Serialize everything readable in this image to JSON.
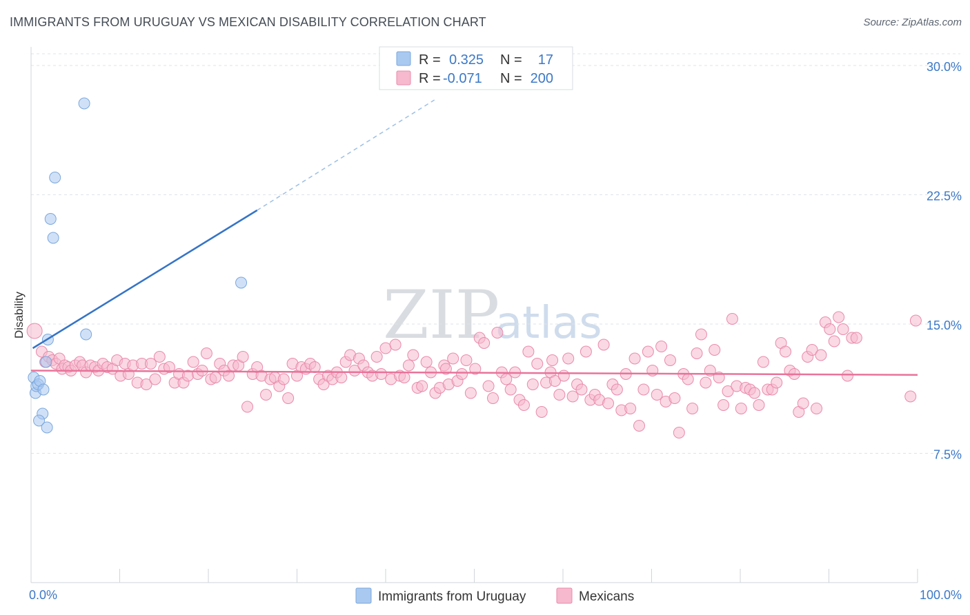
{
  "title": "IMMIGRANTS FROM URUGUAY VS MEXICAN DISABILITY CORRELATION CHART",
  "source": "Source: ZipAtlas.com",
  "watermark": {
    "zip": "ZIP",
    "atlas": "atlas"
  },
  "legend_top": [
    {
      "r_label": "R =",
      "r_value": "0.325",
      "n_label": "N =",
      "n_value": "17",
      "color": "#a9c9f0",
      "stroke": "#7aa7dd"
    },
    {
      "r_label": "R =",
      "r_value": "-0.071",
      "n_label": "N =",
      "n_value": "200",
      "color": "#f6b9cd",
      "stroke": "#e98aab"
    }
  ],
  "legend_bottom": [
    {
      "label": "Immigrants from Uruguay",
      "color": "#a9c9f0",
      "stroke": "#7aa7dd"
    },
    {
      "label": "Mexicans",
      "color": "#f6b9cd",
      "stroke": "#e98aab"
    }
  ],
  "chart_data": {
    "type": "scatter",
    "title": "IMMIGRANTS FROM URUGUAY VS MEXICAN DISABILITY CORRELATION CHART",
    "xlabel": "",
    "ylabel": "Disability",
    "xlim": [
      0,
      100
    ],
    "ylim": [
      0,
      32
    ],
    "x_tick_labels": [
      "0.0%",
      "100.0%"
    ],
    "y_ticks": [
      {
        "value": 7.5,
        "label": "7.5%"
      },
      {
        "value": 15.0,
        "label": "15.0%"
      },
      {
        "value": 22.5,
        "label": "22.5%"
      },
      {
        "value": 30.0,
        "label": "30.0%"
      }
    ],
    "grid": "horizontal-dashed",
    "legend_position": "top-center",
    "series": [
      {
        "name": "Immigrants from Uruguay",
        "color": "#a9c9f0",
        "stroke": "#7aa7dd",
        "trend_color": "#3574c6",
        "trend": {
          "x0": 0.2,
          "y0": 13.6,
          "x1": 25.5,
          "y1": 21.6,
          "dash_to_x": 45.5,
          "dash_to_y": 28.0
        },
        "points": [
          [
            0.3,
            11.9
          ],
          [
            0.5,
            11.0
          ],
          [
            0.6,
            11.4
          ],
          [
            0.8,
            11.5
          ],
          [
            1.0,
            11.7
          ],
          [
            1.4,
            11.2
          ],
          [
            1.3,
            9.8
          ],
          [
            0.9,
            9.4
          ],
          [
            1.8,
            9.0
          ],
          [
            1.7,
            12.8
          ],
          [
            1.9,
            14.1
          ],
          [
            2.2,
            21.1
          ],
          [
            2.5,
            20.0
          ],
          [
            2.7,
            23.5
          ],
          [
            6.0,
            27.8
          ],
          [
            6.2,
            14.4
          ],
          [
            23.7,
            17.4
          ]
        ]
      },
      {
        "name": "Mexicans",
        "color": "#f6b9cd",
        "stroke": "#e98aab",
        "trend_color": "#e8739a",
        "trend": {
          "x0": 0.0,
          "y0": 12.3,
          "x1": 100.0,
          "y1": 12.05
        },
        "points": [
          [
            0.4,
            14.6
          ],
          [
            1.2,
            13.4
          ],
          [
            1.6,
            12.8
          ],
          [
            2.0,
            13.1
          ],
          [
            2.4,
            12.9
          ],
          [
            2.8,
            12.7
          ],
          [
            3.2,
            13.0
          ],
          [
            3.5,
            12.4
          ],
          [
            3.8,
            12.6
          ],
          [
            4.2,
            12.5
          ],
          [
            4.5,
            12.3
          ],
          [
            5.0,
            12.6
          ],
          [
            5.5,
            12.8
          ],
          [
            5.8,
            12.6
          ],
          [
            6.2,
            12.2
          ],
          [
            6.7,
            12.6
          ],
          [
            7.2,
            12.5
          ],
          [
            7.6,
            12.3
          ],
          [
            8.1,
            12.7
          ],
          [
            8.6,
            12.5
          ],
          [
            9.2,
            12.4
          ],
          [
            9.7,
            12.9
          ],
          [
            10.1,
            12.0
          ],
          [
            10.6,
            12.7
          ],
          [
            11.0,
            12.1
          ],
          [
            11.5,
            12.6
          ],
          [
            12.0,
            11.6
          ],
          [
            12.5,
            12.7
          ],
          [
            13.0,
            11.5
          ],
          [
            13.5,
            12.7
          ],
          [
            14.0,
            11.8
          ],
          [
            14.5,
            13.1
          ],
          [
            15.0,
            12.4
          ],
          [
            15.6,
            12.5
          ],
          [
            16.2,
            11.6
          ],
          [
            16.7,
            12.1
          ],
          [
            17.2,
            11.6
          ],
          [
            17.7,
            12.0
          ],
          [
            18.3,
            12.8
          ],
          [
            18.8,
            12.1
          ],
          [
            19.3,
            12.3
          ],
          [
            19.8,
            13.3
          ],
          [
            20.3,
            11.8
          ],
          [
            20.8,
            11.9
          ],
          [
            21.3,
            12.7
          ],
          [
            21.8,
            12.3
          ],
          [
            22.3,
            12.0
          ],
          [
            22.8,
            12.6
          ],
          [
            23.4,
            12.6
          ],
          [
            23.9,
            13.1
          ],
          [
            24.4,
            10.2
          ],
          [
            25.0,
            12.1
          ],
          [
            25.5,
            12.5
          ],
          [
            26.0,
            12.0
          ],
          [
            26.5,
            10.9
          ],
          [
            27.0,
            11.8
          ],
          [
            27.5,
            11.9
          ],
          [
            28.0,
            11.4
          ],
          [
            28.5,
            11.8
          ],
          [
            29.0,
            10.7
          ],
          [
            29.5,
            12.7
          ],
          [
            30.0,
            12.0
          ],
          [
            30.5,
            12.5
          ],
          [
            31.0,
            12.4
          ],
          [
            31.5,
            12.7
          ],
          [
            32.0,
            12.5
          ],
          [
            32.5,
            11.8
          ],
          [
            33.0,
            11.5
          ],
          [
            33.5,
            12.0
          ],
          [
            34.0,
            11.8
          ],
          [
            34.5,
            12.2
          ],
          [
            35.0,
            11.9
          ],
          [
            35.5,
            12.8
          ],
          [
            36.0,
            13.2
          ],
          [
            36.5,
            12.3
          ],
          [
            37.0,
            13.0
          ],
          [
            37.5,
            12.6
          ],
          [
            38.0,
            12.2
          ],
          [
            38.5,
            12.0
          ],
          [
            39.0,
            13.1
          ],
          [
            39.5,
            12.1
          ],
          [
            40.0,
            13.6
          ],
          [
            40.6,
            11.8
          ],
          [
            41.1,
            13.8
          ],
          [
            41.6,
            12.0
          ],
          [
            42.1,
            11.9
          ],
          [
            42.6,
            12.6
          ],
          [
            43.1,
            13.2
          ],
          [
            43.6,
            11.3
          ],
          [
            44.1,
            11.4
          ],
          [
            44.6,
            12.8
          ],
          [
            45.1,
            12.2
          ],
          [
            45.6,
            11.0
          ],
          [
            46.1,
            11.3
          ],
          [
            46.6,
            12.6
          ],
          [
            47.1,
            11.5
          ],
          [
            47.6,
            13.0
          ],
          [
            48.1,
            11.7
          ],
          [
            48.6,
            12.1
          ],
          [
            49.1,
            12.9
          ],
          [
            49.6,
            11.0
          ],
          [
            50.1,
            12.4
          ],
          [
            50.6,
            14.2
          ],
          [
            51.1,
            13.9
          ],
          [
            51.6,
            11.4
          ],
          [
            52.1,
            10.7
          ],
          [
            52.6,
            14.5
          ],
          [
            53.1,
            12.2
          ],
          [
            53.6,
            11.8
          ],
          [
            54.1,
            11.2
          ],
          [
            54.6,
            12.2
          ],
          [
            55.1,
            10.6
          ],
          [
            55.6,
            10.3
          ],
          [
            56.1,
            13.4
          ],
          [
            56.6,
            11.5
          ],
          [
            57.1,
            12.7
          ],
          [
            57.6,
            9.9
          ],
          [
            58.1,
            11.6
          ],
          [
            58.6,
            12.2
          ],
          [
            59.1,
            11.7
          ],
          [
            59.6,
            10.9
          ],
          [
            60.1,
            12.0
          ],
          [
            60.6,
            13.0
          ],
          [
            61.1,
            10.8
          ],
          [
            61.6,
            11.5
          ],
          [
            62.1,
            11.2
          ],
          [
            62.6,
            13.4
          ],
          [
            63.1,
            10.6
          ],
          [
            63.6,
            10.9
          ],
          [
            64.1,
            10.6
          ],
          [
            64.6,
            13.8
          ],
          [
            65.1,
            10.4
          ],
          [
            65.6,
            11.5
          ],
          [
            66.1,
            11.2
          ],
          [
            66.6,
            10.0
          ],
          [
            67.1,
            12.1
          ],
          [
            67.6,
            10.1
          ],
          [
            68.1,
            13.0
          ],
          [
            68.6,
            9.1
          ],
          [
            69.1,
            11.2
          ],
          [
            69.6,
            13.4
          ],
          [
            70.1,
            12.3
          ],
          [
            70.6,
            10.9
          ],
          [
            71.1,
            13.7
          ],
          [
            71.6,
            10.5
          ],
          [
            72.1,
            12.9
          ],
          [
            72.6,
            10.7
          ],
          [
            73.1,
            8.7
          ],
          [
            73.6,
            12.1
          ],
          [
            74.1,
            11.8
          ],
          [
            74.6,
            10.1
          ],
          [
            75.1,
            13.3
          ],
          [
            75.6,
            14.4
          ],
          [
            76.1,
            11.6
          ],
          [
            76.6,
            12.3
          ],
          [
            77.1,
            13.5
          ],
          [
            77.6,
            11.9
          ],
          [
            78.1,
            10.3
          ],
          [
            78.6,
            11.1
          ],
          [
            79.1,
            15.3
          ],
          [
            79.6,
            11.4
          ],
          [
            80.1,
            10.1
          ],
          [
            80.6,
            11.3
          ],
          [
            81.1,
            11.2
          ],
          [
            81.6,
            11.0
          ],
          [
            82.1,
            10.3
          ],
          [
            82.6,
            12.8
          ],
          [
            83.1,
            11.2
          ],
          [
            83.6,
            11.2
          ],
          [
            84.1,
            11.6
          ],
          [
            84.6,
            13.9
          ],
          [
            85.1,
            13.4
          ],
          [
            85.6,
            12.3
          ],
          [
            86.1,
            12.1
          ],
          [
            86.6,
            9.9
          ],
          [
            87.1,
            10.4
          ],
          [
            87.6,
            13.1
          ],
          [
            88.1,
            13.5
          ],
          [
            88.6,
            10.1
          ],
          [
            89.1,
            13.2
          ],
          [
            89.6,
            15.1
          ],
          [
            90.1,
            14.7
          ],
          [
            90.6,
            14.0
          ],
          [
            91.1,
            15.4
          ],
          [
            91.6,
            14.7
          ],
          [
            92.1,
            12.0
          ],
          [
            92.6,
            14.2
          ],
          [
            93.1,
            14.2
          ],
          [
            99.8,
            15.2
          ],
          [
            99.2,
            10.8
          ],
          [
            58.8,
            12.9
          ],
          [
            46.8,
            12.4
          ]
        ]
      }
    ]
  }
}
